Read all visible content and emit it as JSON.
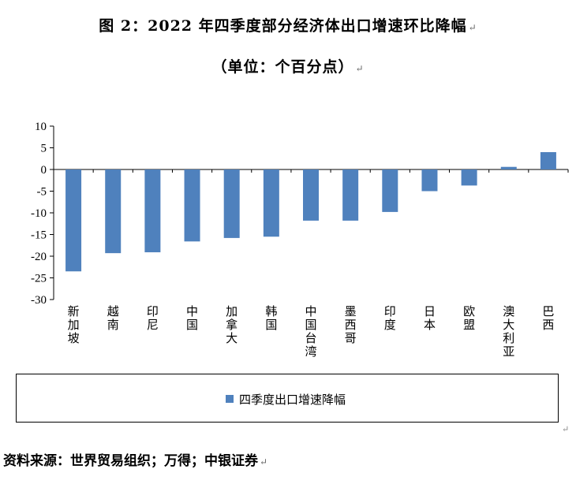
{
  "title": "图 2：2022 年四季度部分经济体出口增速环比降幅",
  "subtitle": "（单位：个百分点）",
  "para_mark": "↵",
  "source": "资料来源：世界贸易组织；万得；中银证券",
  "chart_data": {
    "type": "bar",
    "title": "",
    "xlabel": "",
    "ylabel": "",
    "ylim": [
      -30,
      10
    ],
    "yticks": [
      10,
      5,
      0,
      -5,
      -10,
      -15,
      -20,
      -25,
      -30
    ],
    "grid": false,
    "legend": "bottom",
    "categories": [
      "新加坡",
      "越南",
      "印尼",
      "中国",
      "加拿大",
      "韩国",
      "中国台湾",
      "墨西哥",
      "印度",
      "日本",
      "欧盟",
      "澳大利亚",
      "巴西"
    ],
    "series": [
      {
        "name": "四季度出口增速降幅",
        "color": "#4f81bd",
        "values": [
          -23.5,
          -19.3,
          -19.1,
          -16.6,
          -15.8,
          -15.5,
          -11.8,
          -11.8,
          -9.8,
          -5.0,
          -3.7,
          0.6,
          4.0
        ]
      }
    ]
  }
}
